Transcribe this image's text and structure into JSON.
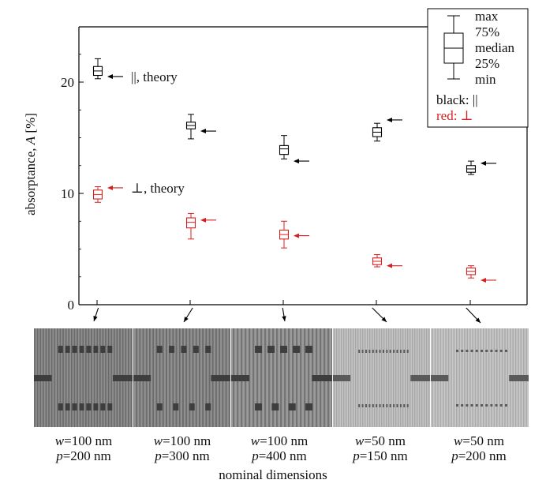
{
  "chart_data": {
    "type": "box",
    "ylabel": "absorptance, A [%]",
    "ylabel_italic_part": "A",
    "xlabel": "nominal dimensions",
    "ylim": [
      0,
      25
    ],
    "yticks": [
      0,
      10,
      20
    ],
    "samples": [
      {
        "w_label": "w",
        "w_value": "=100 nm",
        "p_label": "p",
        "p_value": "=200 nm"
      },
      {
        "w_label": "w",
        "w_value": "=100 nm",
        "p_label": "p",
        "p_value": "=300 nm"
      },
      {
        "w_label": "w",
        "w_value": "=100 nm",
        "p_label": "p",
        "p_value": "=400 nm"
      },
      {
        "w_label": "w",
        "w_value": "=50 nm",
        "p_label": "p",
        "p_value": "=150 nm"
      },
      {
        "w_label": "w",
        "w_value": "=50 nm",
        "p_label": "p",
        "p_value": "=200 nm"
      }
    ],
    "series": [
      {
        "polarization": "parallel",
        "color": "#000000",
        "boxes": [
          {
            "min": 20.3,
            "q1": 20.6,
            "median": 21.0,
            "q3": 21.4,
            "max": 22.1
          },
          {
            "min": 14.9,
            "q1": 15.8,
            "median": 16.1,
            "q3": 16.4,
            "max": 17.1
          },
          {
            "min": 13.1,
            "q1": 13.5,
            "median": 14.0,
            "q3": 14.3,
            "max": 15.2
          },
          {
            "min": 14.7,
            "q1": 15.1,
            "median": 15.5,
            "q3": 15.9,
            "max": 16.3
          },
          {
            "min": 11.7,
            "q1": 11.9,
            "median": 12.2,
            "q3": 12.5,
            "max": 12.9
          }
        ],
        "theory": [
          20.5,
          15.6,
          12.9,
          16.6,
          12.7
        ]
      },
      {
        "polarization": "perpendicular",
        "color": "#d62020",
        "boxes": [
          {
            "min": 9.2,
            "q1": 9.5,
            "median": 9.9,
            "q3": 10.3,
            "max": 10.6
          },
          {
            "min": 5.9,
            "q1": 6.9,
            "median": 7.4,
            "q3": 7.8,
            "max": 8.2
          },
          {
            "min": 5.1,
            "q1": 5.9,
            "median": 6.3,
            "q3": 6.7,
            "max": 7.5
          },
          {
            "min": 3.4,
            "q1": 3.6,
            "median": 3.9,
            "q3": 4.2,
            "max": 4.5
          },
          {
            "min": 2.4,
            "q1": 2.7,
            "median": 3.0,
            "q3": 3.3,
            "max": 3.5
          }
        ],
        "theory": [
          10.5,
          7.6,
          6.2,
          3.5,
          2.2
        ]
      }
    ],
    "annotations": [
      {
        "text": "||, theory",
        "series": "parallel",
        "sample_index": 0
      },
      {
        "text": "⊥, theory",
        "series": "perpendicular",
        "sample_index": 0
      }
    ],
    "legend": {
      "placement": "top-right",
      "items": [
        "max",
        "75%",
        "median",
        "25%",
        "min"
      ],
      "black_label": "black: ||",
      "red_label": "red: ⊥"
    }
  }
}
